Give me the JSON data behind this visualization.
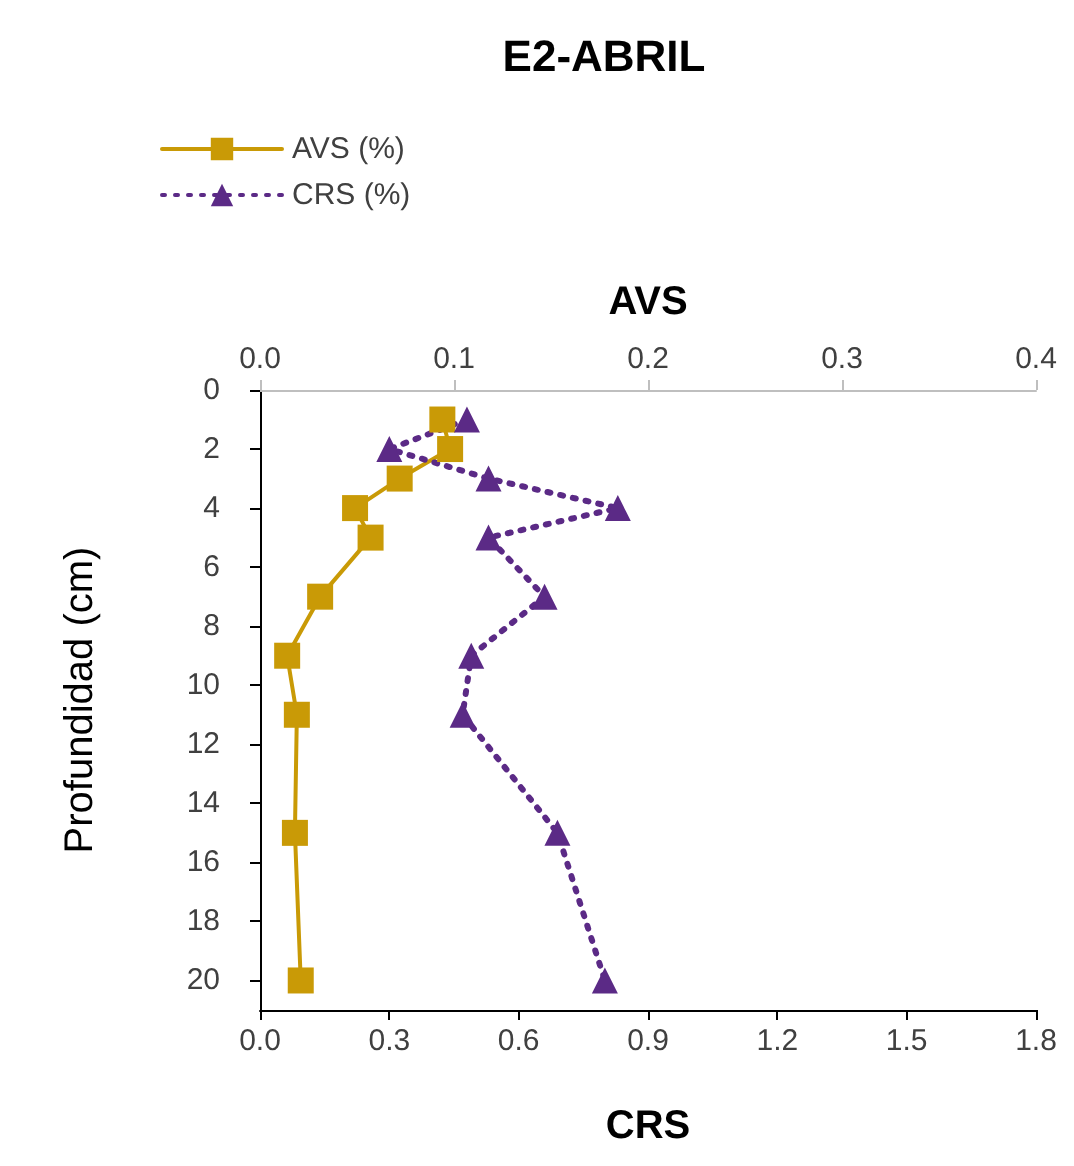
{
  "chart_data": {
    "type": "line",
    "title": "E2-ABRIL",
    "xlabel": "CRS",
    "x2label": "AVS",
    "ylabel": "Profundidad (cm)",
    "xlim": [
      0,
      1.8
    ],
    "xticks": [
      {
        "value": 0,
        "label": "0.0"
      },
      0.3,
      0.6,
      0.9,
      1.2,
      1.5,
      1.8
    ],
    "x2lim": [
      0,
      0.4
    ],
    "x2ticks": [
      {
        "value": 0,
        "label": "0.0"
      },
      0.1,
      0.2,
      0.3,
      0.4
    ],
    "ylim": [
      21,
      0
    ],
    "yticks": [
      0,
      2,
      4,
      6,
      8,
      10,
      12,
      14,
      16,
      18,
      20
    ],
    "grid": false,
    "legend": "top left",
    "series": [
      {
        "name": "AVS (%)",
        "color": "#c99a06",
        "axis": "x2",
        "marker": "square",
        "line_style": "solid",
        "x": [
          0.094,
          0.098,
          0.072,
          0.049,
          0.057,
          0.031,
          0.014,
          0.019,
          0.018,
          0.021
        ],
        "values": [
          1,
          2,
          3,
          4,
          5,
          7,
          9,
          11,
          15,
          20
        ]
      },
      {
        "name": "CRS (%)",
        "color": "#5b2a86",
        "marker": "triangle",
        "line_style": "dotted",
        "x": [
          0.48,
          0.3,
          0.53,
          0.83,
          0.53,
          0.66,
          0.49,
          0.47,
          0.69,
          0.8
        ],
        "values": [
          1,
          2,
          3,
          4,
          5,
          7,
          9,
          11,
          15,
          20
        ]
      }
    ]
  }
}
